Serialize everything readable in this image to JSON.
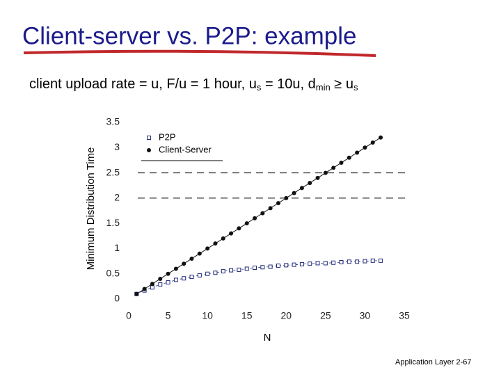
{
  "slide": {
    "title": "Client-server vs. P2P: example",
    "subtitle": [
      {
        "text": "client upload rate = u,  F/u = 1 hour,  u"
      },
      {
        "text": "s",
        "sub": true
      },
      {
        "text": " = 10u,  d"
      },
      {
        "text": "min",
        "sub": true
      },
      {
        "text": " ≥ u"
      },
      {
        "text": "s",
        "sub": true
      }
    ],
    "footer": "Application Layer",
    "page": "2-67"
  },
  "chart_data": {
    "type": "line",
    "xlabel": "N",
    "ylabel": "Minimum Distribution Time",
    "x": [
      1,
      2,
      3,
      4,
      5,
      6,
      7,
      8,
      9,
      10,
      11,
      12,
      13,
      14,
      15,
      16,
      17,
      18,
      19,
      20,
      21,
      22,
      23,
      24,
      25,
      26,
      27,
      28,
      29,
      30,
      31,
      32
    ],
    "series": [
      {
        "name": "P2P",
        "color": "#1f2a7a",
        "marker": "open-square",
        "values": [
          0.1,
          0.17,
          0.23,
          0.29,
          0.33,
          0.38,
          0.41,
          0.44,
          0.47,
          0.5,
          0.52,
          0.55,
          0.57,
          0.58,
          0.6,
          0.62,
          0.63,
          0.64,
          0.66,
          0.67,
          0.68,
          0.69,
          0.7,
          0.71,
          0.71,
          0.72,
          0.73,
          0.74,
          0.74,
          0.75,
          0.76,
          0.76
        ]
      },
      {
        "name": "Client-Server",
        "color": "#111111",
        "marker": "dot",
        "values": [
          0.1,
          0.2,
          0.3,
          0.4,
          0.5,
          0.6,
          0.7,
          0.8,
          0.9,
          1,
          1.1,
          1.2,
          1.3,
          1.4,
          1.5,
          1.6,
          1.7,
          1.8,
          1.9,
          2,
          2.1,
          2.2,
          2.3,
          2.4,
          2.5,
          2.6,
          2.7,
          2.8,
          2.9,
          3,
          3.1,
          3.2
        ]
      }
    ],
    "xlim": [
      0,
      35
    ],
    "xticks": [
      0,
      5,
      10,
      15,
      20,
      25,
      30,
      35
    ],
    "ylim": [
      0,
      3.5
    ],
    "yticks": [
      0,
      0.5,
      1,
      1.5,
      2,
      2.5,
      3,
      3.5
    ],
    "hlines": [
      2,
      2.5
    ],
    "legend": "upper left"
  }
}
